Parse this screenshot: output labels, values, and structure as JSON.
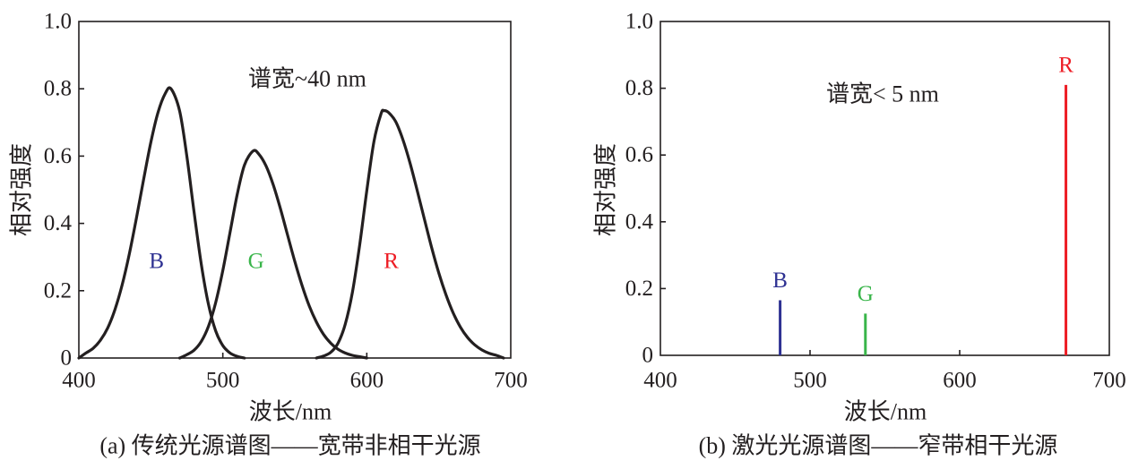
{
  "chart_data": [
    {
      "type": "line",
      "caption": "(a) 传统光源谱图——宽带非相干光源",
      "xlabel": "波长/nm",
      "ylabel": "相对强度",
      "annotation": "谱宽~40 nm",
      "xlim": [
        400,
        700
      ],
      "ylim": [
        0,
        1.0
      ],
      "xticks": [
        "400",
        "500",
        "600",
        "700"
      ],
      "yticks": [
        "0",
        "0.2",
        "0.4",
        "0.6",
        "0.8",
        "1.0"
      ],
      "grid": false,
      "line_color": "#231f20",
      "series": [
        {
          "name": "B",
          "color": "#2e3192",
          "x": [
            400,
            405,
            410,
            415,
            420,
            425,
            430,
            435,
            440,
            445,
            450,
            455,
            460,
            464,
            470,
            475,
            480,
            485,
            490,
            495,
            500,
            505,
            510,
            515
          ],
          "y": [
            0,
            0.015,
            0.029,
            0.053,
            0.089,
            0.143,
            0.216,
            0.308,
            0.416,
            0.531,
            0.641,
            0.73,
            0.786,
            0.8,
            0.734,
            0.6,
            0.435,
            0.28,
            0.16,
            0.081,
            0.037,
            0.015,
            0.005,
            0
          ]
        },
        {
          "name": "G",
          "color": "#39b54a",
          "x": [
            470,
            475,
            480,
            485,
            490,
            495,
            500,
            505,
            510,
            515,
            521,
            525,
            530,
            535,
            540,
            545,
            550,
            555,
            560,
            565,
            570,
            575,
            580,
            585,
            590,
            595,
            600
          ],
          "y": [
            0,
            0.01,
            0.023,
            0.049,
            0.094,
            0.164,
            0.26,
            0.373,
            0.486,
            0.573,
            0.615,
            0.606,
            0.571,
            0.515,
            0.444,
            0.365,
            0.287,
            0.216,
            0.155,
            0.107,
            0.07,
            0.044,
            0.026,
            0.015,
            0.008,
            0.004,
            0
          ]
        },
        {
          "name": "R",
          "color": "#ed1c24",
          "x": [
            565,
            570,
            575,
            580,
            585,
            590,
            595,
            600,
            605,
            610,
            612,
            615,
            620,
            625,
            630,
            635,
            640,
            645,
            650,
            655,
            660,
            665,
            670,
            675,
            680,
            685,
            690,
            695
          ],
          "y": [
            0,
            0.006,
            0.017,
            0.044,
            0.1,
            0.195,
            0.334,
            0.497,
            0.644,
            0.727,
            0.735,
            0.73,
            0.703,
            0.65,
            0.58,
            0.498,
            0.413,
            0.329,
            0.253,
            0.188,
            0.134,
            0.092,
            0.061,
            0.039,
            0.024,
            0.014,
            0.008,
            0
          ]
        }
      ]
    },
    {
      "type": "bar",
      "caption": "(b) 激光光源谱图——窄带相干光源",
      "xlabel": "波长/nm",
      "ylabel": "相对强度",
      "annotation": "谱宽< 5 nm",
      "xlim": [
        400,
        700
      ],
      "ylim": [
        0,
        1.0
      ],
      "xticks": [
        "400",
        "500",
        "600",
        "700"
      ],
      "yticks": [
        "0",
        "0.2",
        "0.4",
        "0.6",
        "0.8",
        "1.0"
      ],
      "grid": false,
      "series": [
        {
          "name": "B",
          "color": "#2e3192",
          "x": [
            480
          ],
          "y": [
            0.165
          ]
        },
        {
          "name": "G",
          "color": "#39b54a",
          "x": [
            537
          ],
          "y": [
            0.125
          ]
        },
        {
          "name": "R",
          "color": "#ed1c24",
          "x": [
            671
          ],
          "y": [
            0.81
          ]
        }
      ]
    }
  ]
}
